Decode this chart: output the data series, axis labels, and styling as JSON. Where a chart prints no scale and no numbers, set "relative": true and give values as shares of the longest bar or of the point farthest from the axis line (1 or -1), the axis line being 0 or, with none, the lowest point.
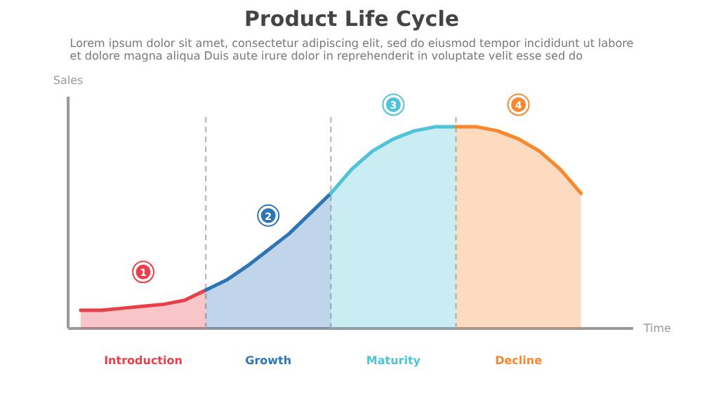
{
  "chart_data": {
    "type": "area",
    "title": "Product Life Cycle",
    "subtitle": "Lorem ipsum dolor sit amet, consectetur adipiscing elit, sed do eiusmod tempor incididunt ut labore et dolore magna aliqua Duis aute irure dolor in reprehenderit in voluptate velit esse sed do",
    "xlabel": "Time",
    "ylabel": "Sales",
    "relative": true,
    "grid": "x",
    "categories": [
      null,
      null,
      null,
      null,
      null,
      null,
      null,
      null,
      null,
      null,
      null,
      null,
      null,
      null,
      null,
      null,
      null,
      null,
      null,
      null,
      null,
      null,
      null,
      null,
      null
    ],
    "series": [
      {
        "name": "Introduction",
        "color": "#e8404a",
        "values": [
          0.09,
          0.09,
          0.1,
          0.11,
          0.12,
          0.14,
          0.19,
          null,
          null,
          null,
          null,
          null,
          null,
          null,
          null,
          null,
          null,
          null,
          null,
          null,
          null,
          null,
          null,
          null,
          null
        ]
      },
      {
        "name": "Growth",
        "color": "#2e75b6",
        "values": [
          null,
          null,
          null,
          null,
          null,
          null,
          0.19,
          0.24,
          0.31,
          0.39,
          0.47,
          0.57,
          0.67,
          null,
          null,
          null,
          null,
          null,
          null,
          null,
          null,
          null,
          null,
          null,
          null
        ]
      },
      {
        "name": "Maturity",
        "color": "#4fc3d8",
        "values": [
          null,
          null,
          null,
          null,
          null,
          null,
          null,
          null,
          null,
          null,
          null,
          null,
          0.67,
          0.79,
          0.88,
          0.94,
          0.98,
          1.0,
          1.0,
          null,
          null,
          null,
          null,
          null,
          null
        ]
      },
      {
        "name": "Decline",
        "color": "#f7882f",
        "values": [
          null,
          null,
          null,
          null,
          null,
          null,
          null,
          null,
          null,
          null,
          null,
          null,
          null,
          null,
          null,
          null,
          null,
          null,
          1.0,
          1.0,
          0.98,
          0.94,
          0.88,
          0.79,
          0.67
        ]
      }
    ],
    "annotations": [
      "1",
      "2",
      "3",
      "4"
    ]
  }
}
